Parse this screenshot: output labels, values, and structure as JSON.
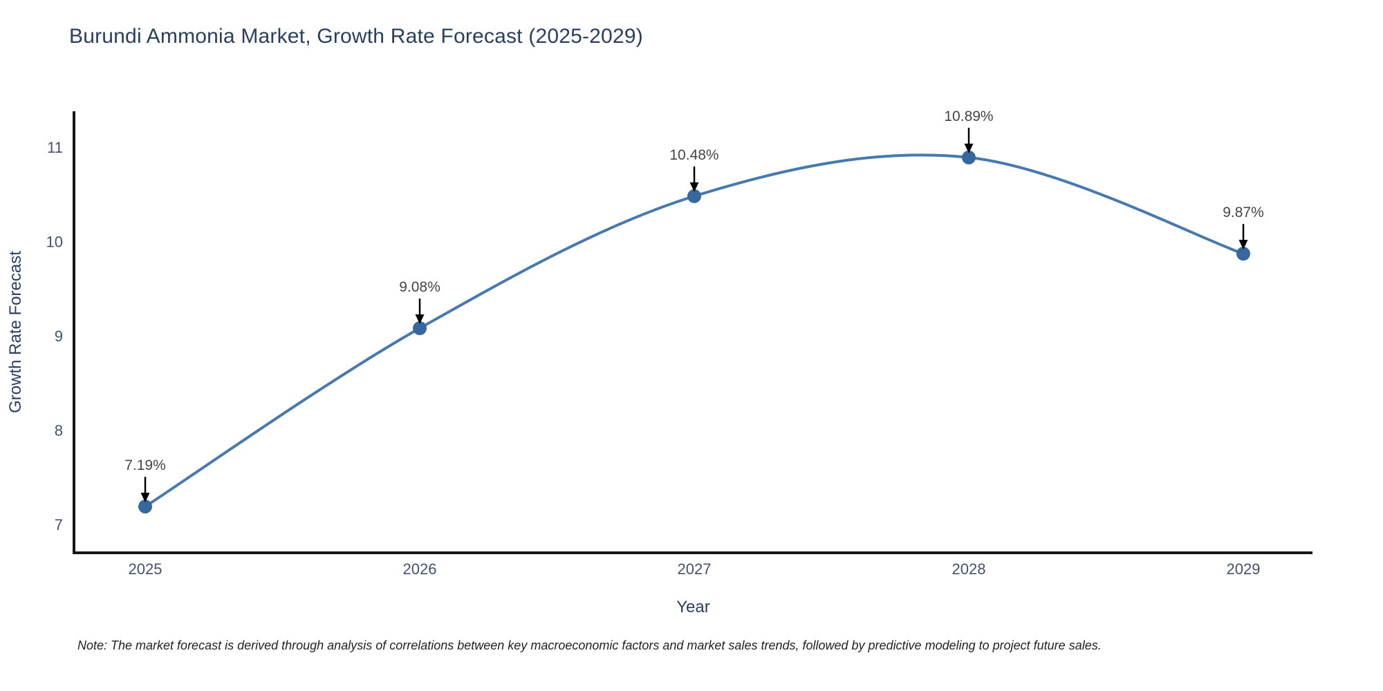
{
  "title": "Burundi Ammonia Market, Growth Rate Forecast (2025-2029)",
  "note": "Note: The market forecast is derived through analysis of correlations between key macroeconomic factors and market sales trends, followed by predictive modeling to project future sales.",
  "chart_data": {
    "type": "line",
    "title": "Burundi Ammonia Market, Growth Rate Forecast (2025-2029)",
    "xlabel": "Year",
    "ylabel": "Growth Rate Forecast",
    "x": [
      2025,
      2026,
      2027,
      2028,
      2029
    ],
    "values": [
      7.19,
      9.08,
      10.48,
      10.89,
      9.87
    ],
    "point_labels": [
      "7.19%",
      "9.08%",
      "10.48%",
      "10.89%",
      "9.87%"
    ],
    "yticks": [
      7,
      8,
      9,
      10,
      11
    ],
    "ylim": [
      6.7,
      11.38
    ],
    "line_shape": "spline",
    "grid": false,
    "legend": "none",
    "marker": "circle",
    "annotation_arrows": "down",
    "colors": {
      "line": "#4679ae",
      "marker": "#36689e",
      "title_text": "#2a3f5f",
      "axis_title_text": "#2a3f5f",
      "tick_text": "#42526b",
      "annotation_text": "#444444",
      "axis_line": "#161616",
      "arrow": "#000000",
      "background": "#ffffff"
    }
  }
}
